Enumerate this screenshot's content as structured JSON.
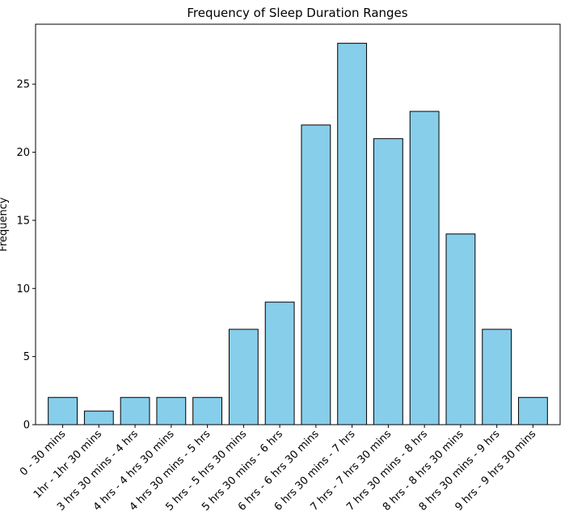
{
  "chart_data": {
    "type": "bar",
    "title": "Frequency of Sleep Duration Ranges",
    "ylabel": "Frequency",
    "xlabel": "",
    "categories": [
      "0 - 30 mins",
      "1hr - 1hr 30 mins",
      "3 hrs 30 mins - 4 hrs",
      "4 hrs - 4 hrs 30 mins",
      "4 hrs 30 mins - 5 hrs",
      "5 hrs - 5 hrs 30 mins",
      "5 hrs 30 mins - 6 hrs",
      "6 hrs - 6 hrs 30 mins",
      "6 hrs 30 mins - 7 hrs",
      "7 hrs - 7 hrs 30 mins",
      "7 hrs 30 mins - 8 hrs",
      "8 hrs - 8 hrs 30 mins",
      "8 hrs 30 mins - 9 hrs",
      "9 hrs - 9 hrs 30 mins"
    ],
    "values": [
      2,
      1,
      2,
      2,
      2,
      7,
      9,
      22,
      28,
      21,
      23,
      14,
      7,
      2
    ],
    "ylim": [
      0,
      29.4
    ],
    "yticks": [
      0,
      5,
      10,
      15,
      20,
      25
    ],
    "grid": false,
    "bar_color": "#87CEEB",
    "edge_color": "#000000"
  }
}
